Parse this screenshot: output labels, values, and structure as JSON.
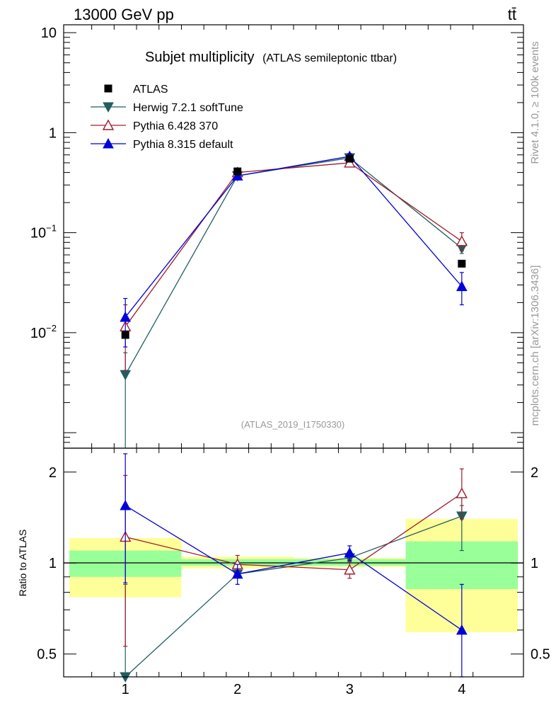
{
  "header": {
    "left_label": "13000 GeV pp",
    "right_label": "tt̄"
  },
  "chart_data": {
    "type": "line",
    "title": "Subjet multiplicity",
    "subtitle": "(ATLAS semileptonic ttbar)",
    "analysis_id": "(ATLAS_2019_I1750330)",
    "side_labels": {
      "rivet": "Rivet 4.1.0, ≥ 100k events",
      "source": "mcplots.cern.ch [arXiv:1306.3436]"
    },
    "x": [
      1,
      2,
      3,
      4
    ],
    "xlim": [
      0.45,
      4.55
    ],
    "xticks": [
      "1",
      "2",
      "3",
      "4"
    ],
    "main": {
      "yscale": "log",
      "ylim": [
        0.0007,
        12
      ],
      "yticks": [
        {
          "value": 10,
          "base": "10",
          "exp": ""
        },
        {
          "value": 1,
          "base": "1",
          "exp": ""
        },
        {
          "value": 0.1,
          "base": "10",
          "exp": "−1"
        },
        {
          "value": 0.01,
          "base": "10",
          "exp": "−2"
        }
      ]
    },
    "ratio": {
      "ylabel": "Ratio to ATLAS",
      "yscale": "log",
      "ylim": [
        0.42,
        2.4
      ],
      "yticks": [
        "0.5",
        "1",
        "2"
      ]
    },
    "series": [
      {
        "name": "ATLAS",
        "marker": "square",
        "color": "#000000",
        "values": [
          0.0095,
          0.41,
          0.55,
          0.049
        ],
        "err_lo": [
          0.0095,
          0.41,
          0.55,
          0.049
        ],
        "err_hi": [
          0.0095,
          0.41,
          0.55,
          0.049
        ],
        "ratio": [
          1,
          1,
          1,
          1
        ],
        "ratio_lo": [
          1,
          1,
          1,
          1
        ],
        "ratio_hi": [
          1,
          1,
          1,
          1
        ]
      },
      {
        "name": "Herwig 7.2.1 softTune",
        "marker": "triangle-down",
        "color": "#225e5e",
        "values": [
          0.0038,
          0.37,
          0.56,
          0.07
        ],
        "err_lo": [
          1e-05,
          0.35,
          0.53,
          0.062
        ],
        "err_hi": [
          0.0063,
          0.39,
          0.59,
          0.078
        ],
        "ratio": [
          0.4,
          0.92,
          1.04,
          1.43
        ],
        "ratio_lo": [
          0.3,
          0.9,
          1.01,
          1.1
        ],
        "ratio_hi": [
          0.85,
          0.95,
          1.07,
          1.55
        ]
      },
      {
        "name": "Pythia 6.428 370",
        "marker": "triangle-open",
        "color": "#a01c2c",
        "values": [
          0.0115,
          0.4,
          0.5,
          0.082
        ],
        "err_lo": [
          0.0042,
          0.375,
          0.47,
          0.066
        ],
        "err_hi": [
          0.019,
          0.425,
          0.53,
          0.1
        ],
        "ratio": [
          1.22,
          0.99,
          0.95,
          1.7
        ],
        "ratio_lo": [
          0.53,
          0.94,
          0.89,
          1.4
        ],
        "ratio_hi": [
          1.95,
          1.06,
          1.01,
          2.05
        ]
      },
      {
        "name": "Pythia 8.315 default",
        "marker": "triangle-up",
        "color": "#0000d8",
        "values": [
          0.0143,
          0.37,
          0.58,
          0.029
        ],
        "err_lo": [
          0.0072,
          0.345,
          0.55,
          0.019
        ],
        "err_hi": [
          0.022,
          0.395,
          0.62,
          0.04
        ],
        "ratio": [
          1.55,
          0.92,
          1.08,
          0.6
        ],
        "ratio_lo": [
          0.86,
          0.85,
          1.02,
          0.38
        ],
        "ratio_hi": [
          2.3,
          0.99,
          1.14,
          0.85
        ]
      }
    ],
    "bands": {
      "x_edges": [
        [
          0.5,
          1.5
        ],
        [
          1.5,
          2.5
        ],
        [
          2.5,
          3.5
        ],
        [
          3.5,
          4.5
        ]
      ],
      "inner": [
        [
          0.9,
          1.1
        ],
        [
          0.98,
          1.03
        ],
        [
          0.98,
          1.03
        ],
        [
          0.82,
          1.18
        ]
      ],
      "outer": [
        [
          0.77,
          1.21
        ],
        [
          0.96,
          1.05
        ],
        [
          0.97,
          1.04
        ],
        [
          0.59,
          1.4
        ]
      ],
      "inner_color": "#99ff99",
      "outer_color": "#ffff99"
    }
  }
}
